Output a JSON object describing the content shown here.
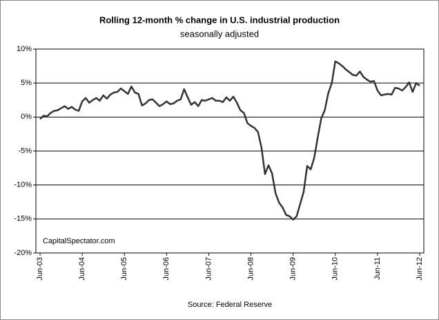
{
  "chart_data": {
    "type": "line",
    "title": "Rolling 12-month %  change in U.S. industrial production",
    "subtitle": "seasonally adjusted",
    "annotation": "CapitalSpectator.com",
    "source": "Source: Federal Reserve",
    "categories": [
      "Jun-03",
      null,
      null,
      null,
      null,
      null,
      null,
      null,
      null,
      null,
      null,
      null,
      "Jun-04",
      null,
      null,
      null,
      null,
      null,
      null,
      null,
      null,
      null,
      null,
      null,
      "Jun-05",
      null,
      null,
      null,
      null,
      null,
      null,
      null,
      null,
      null,
      null,
      null,
      "Jun-06",
      null,
      null,
      null,
      null,
      null,
      null,
      null,
      null,
      null,
      null,
      null,
      "Jun-07",
      null,
      null,
      null,
      null,
      null,
      null,
      null,
      null,
      null,
      null,
      null,
      "Jun-08",
      null,
      null,
      null,
      null,
      null,
      null,
      null,
      null,
      null,
      null,
      null,
      "Jun-09",
      null,
      null,
      null,
      null,
      null,
      null,
      null,
      null,
      null,
      null,
      null,
      "Jun-10",
      null,
      null,
      null,
      null,
      null,
      null,
      null,
      null,
      null,
      null,
      null,
      "Jun-11",
      null,
      null,
      null,
      null,
      null,
      null,
      null,
      null,
      null,
      null,
      null,
      "Jun-12"
    ],
    "values": [
      -0.3,
      0.2,
      0.1,
      0.6,
      0.9,
      1.0,
      1.3,
      1.6,
      1.2,
      1.5,
      1.1,
      0.9,
      2.3,
      2.8,
      2.1,
      2.5,
      2.8,
      2.4,
      3.2,
      2.7,
      3.3,
      3.6,
      3.7,
      4.2,
      3.8,
      3.4,
      4.5,
      3.6,
      3.4,
      1.7,
      2.0,
      2.5,
      2.6,
      2.1,
      1.6,
      1.9,
      2.3,
      1.9,
      2.0,
      2.4,
      2.6,
      4.1,
      2.9,
      1.8,
      2.2,
      1.6,
      2.5,
      2.4,
      2.6,
      2.8,
      2.4,
      2.4,
      2.2,
      2.9,
      2.4,
      3.0,
      2.1,
      1.0,
      0.6,
      -0.9,
      -1.3,
      -1.6,
      -2.2,
      -4.5,
      -8.4,
      -7.1,
      -8.3,
      -11.2,
      -12.6,
      -13.3,
      -14.4,
      -14.6,
      -15.1,
      -14.6,
      -12.8,
      -11.0,
      -7.2,
      -7.7,
      -6.0,
      -3.0,
      -0.2,
      1.0,
      3.5,
      5.0,
      8.2,
      7.9,
      7.5,
      7.0,
      6.6,
      6.2,
      6.1,
      6.7,
      5.9,
      5.5,
      5.2,
      5.3,
      3.9,
      3.2,
      3.3,
      3.4,
      3.3,
      4.3,
      4.2,
      3.9,
      4.4,
      5.1,
      3.7,
      5.0,
      4.6
    ],
    "color": "#333333",
    "ylim": [
      -20,
      10
    ],
    "yticks": [
      {
        "value": -20,
        "label": "-20%"
      },
      {
        "value": -15,
        "label": "-15%"
      },
      {
        "value": -10,
        "label": "-10%"
      },
      {
        "value": -5,
        "label": "-5%"
      },
      {
        "value": 0,
        "label": "0%"
      },
      {
        "value": 5,
        "label": "5%"
      },
      {
        "value": 10,
        "label": "10%"
      }
    ],
    "grid": true
  }
}
